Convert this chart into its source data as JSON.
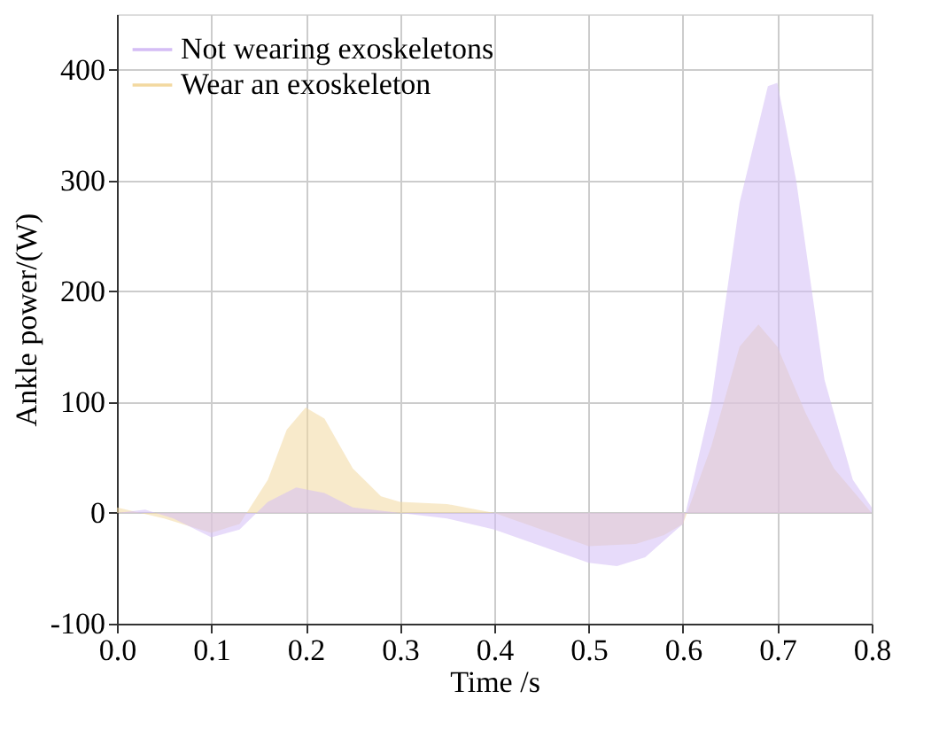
{
  "chart_data": {
    "type": "area",
    "xlabel": "Time /s",
    "ylabel": "Ankle power/(W)",
    "xlim": [
      0.0,
      0.8
    ],
    "ylim": [
      -100,
      450
    ],
    "xticks": [
      {
        "value": 0,
        "label": "0.0"
      },
      0.1,
      0.2,
      0.3,
      0.4,
      0.5,
      0.6,
      0.7,
      {
        "value": 0.8,
        "label": "0.8"
      }
    ],
    "yticks": [
      -100,
      0,
      100,
      200,
      300,
      400
    ],
    "grid": true,
    "legend": "top left",
    "series": [
      {
        "name": "Not wearing exoskeletons",
        "color": "#d4bdf5",
        "x": [
          0,
          0.03,
          0.06,
          0.1,
          0.13,
          0.16,
          0.19,
          0.22,
          0.25,
          0.3,
          0.35,
          0.4,
          0.45,
          0.5,
          0.53,
          0.56,
          0.6,
          0.63,
          0.66,
          0.69,
          0.7,
          0.72,
          0.75,
          0.78,
          0.8
        ],
        "values": [
          0,
          3,
          -5,
          -22,
          -15,
          10,
          23,
          18,
          5,
          0,
          -5,
          -15,
          -30,
          -45,
          -48,
          -40,
          -10,
          100,
          280,
          385,
          388,
          300,
          120,
          30,
          5
        ]
      },
      {
        "name": "Wear an exoskeleton",
        "color": "#f3d9a0",
        "x": [
          0,
          0.05,
          0.1,
          0.13,
          0.16,
          0.18,
          0.2,
          0.22,
          0.25,
          0.28,
          0.3,
          0.35,
          0.4,
          0.45,
          0.5,
          0.55,
          0.58,
          0.6,
          0.63,
          0.66,
          0.68,
          0.7,
          0.73,
          0.76,
          0.8
        ],
        "values": [
          5,
          -5,
          -18,
          -10,
          30,
          75,
          95,
          85,
          40,
          15,
          10,
          8,
          0,
          -15,
          -30,
          -28,
          -20,
          -10,
          60,
          150,
          170,
          150,
          90,
          40,
          0
        ]
      }
    ]
  }
}
